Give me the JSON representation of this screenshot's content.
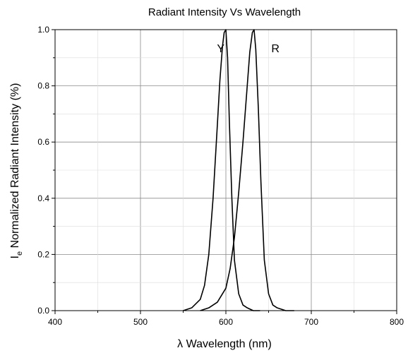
{
  "chart_data": {
    "type": "line",
    "title": "Radiant Intensity Vs Wavelength",
    "xlabel": "λ  Wavelength (nm)",
    "ylabel_main": "I",
    "ylabel_sub": "e",
    "ylabel_rest": " Normalized Radiant Intensity (%)",
    "xlim": [
      400,
      800
    ],
    "ylim": [
      0,
      1.0
    ],
    "x_ticks": [
      400,
      500,
      600,
      700,
      800
    ],
    "y_ticks": [
      0.0,
      0.2,
      0.4,
      0.6,
      0.8,
      1.0
    ],
    "x_tick_labels": [
      "400",
      "500",
      "600",
      "700",
      "800"
    ],
    "y_tick_labels": [
      "0.0",
      "0.2",
      "0.4",
      "0.6",
      "0.8",
      "1.0"
    ],
    "grid": true,
    "series": [
      {
        "name": "Y",
        "x": [
          550,
          560,
          570,
          575,
          580,
          585,
          590,
          593,
          596,
          598,
          600,
          602,
          604,
          607,
          610,
          615,
          620,
          625,
          632,
          640
        ],
        "y": [
          0.0,
          0.01,
          0.04,
          0.09,
          0.2,
          0.4,
          0.66,
          0.82,
          0.94,
          0.99,
          1.0,
          0.9,
          0.68,
          0.4,
          0.18,
          0.06,
          0.02,
          0.01,
          0.0,
          0.0
        ]
      },
      {
        "name": "R",
        "x": [
          570,
          580,
          590,
          600,
          605,
          610,
          615,
          620,
          625,
          628,
          631,
          633,
          635,
          638,
          641,
          645,
          650,
          655,
          660,
          670,
          680
        ],
        "y": [
          0.0,
          0.01,
          0.03,
          0.08,
          0.15,
          0.26,
          0.42,
          0.6,
          0.8,
          0.92,
          0.99,
          1.0,
          0.93,
          0.72,
          0.46,
          0.18,
          0.06,
          0.02,
          0.01,
          0.0,
          0.0
        ]
      }
    ],
    "series_labels": [
      {
        "text": "Y",
        "x": 594,
        "y": 0.935
      },
      {
        "text": "R",
        "x": 658,
        "y": 0.935
      }
    ]
  }
}
